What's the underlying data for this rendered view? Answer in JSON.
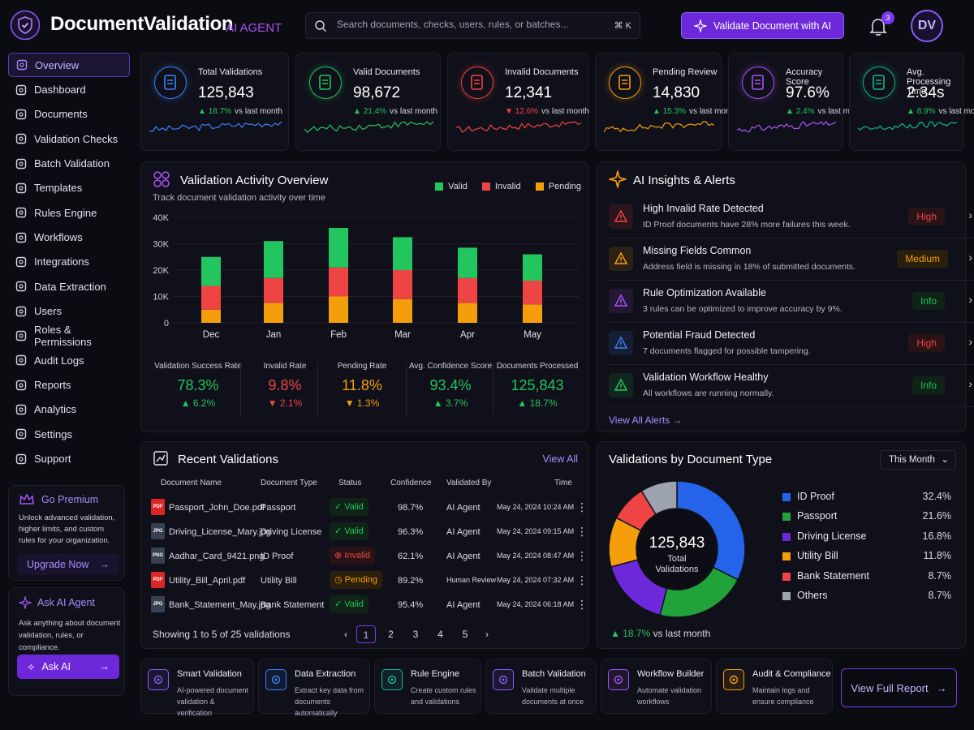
{
  "header": {
    "brand": "DocumentValidation",
    "tag": "AI AGENT",
    "search_placeholder": "Search documents, checks, users, rules, or batches...",
    "search_shortcut": "⌘ K",
    "validate_button": "Validate Document with AI",
    "notification_count": "3",
    "avatar_initials": "DV"
  },
  "sidebar": {
    "items": [
      {
        "label": "Overview",
        "icon": "home-icon",
        "active": true
      },
      {
        "label": "Dashboard",
        "icon": "dashboard-icon"
      },
      {
        "label": "Documents",
        "icon": "documents-icon"
      },
      {
        "label": "Validation Checks",
        "icon": "checklist-icon"
      },
      {
        "label": "Batch Validation",
        "icon": "batch-icon"
      },
      {
        "label": "Templates",
        "icon": "template-icon"
      },
      {
        "label": "Rules Engine",
        "icon": "gear-icon"
      },
      {
        "label": "Workflows",
        "icon": "workflow-icon"
      },
      {
        "label": "Integrations",
        "icon": "integrations-icon"
      },
      {
        "label": "Data Extraction",
        "icon": "extraction-icon"
      },
      {
        "label": "Users",
        "icon": "users-icon"
      },
      {
        "label": "Roles & Permissions",
        "icon": "shield-icon"
      },
      {
        "label": "Audit Logs",
        "icon": "audit-icon"
      },
      {
        "label": "Reports",
        "icon": "report-icon"
      },
      {
        "label": "Analytics",
        "icon": "analytics-icon"
      },
      {
        "label": "Settings",
        "icon": "settings-icon"
      },
      {
        "label": "Support",
        "icon": "help-icon"
      }
    ],
    "premium": {
      "title": "Go Premium",
      "desc": "Unlock advanced validation, higher limits, and custom rules for your organization.",
      "button": "Upgrade Now"
    },
    "ask": {
      "title": "Ask AI Agent",
      "desc": "Ask anything about document validation, rules, or compliance.",
      "button": "Ask AI"
    }
  },
  "stats": [
    {
      "title": "Total Validations",
      "value": "125,843",
      "delta": "18.7%",
      "delta_label": "vs last month",
      "trend": "up",
      "color": "#3b82f6",
      "icon": "document-icon"
    },
    {
      "title": "Valid Documents",
      "value": "98,672",
      "delta": "21.4%",
      "delta_label": "vs last month",
      "trend": "up",
      "color": "#22c55e",
      "icon": "check-circle-icon"
    },
    {
      "title": "Invalid Documents",
      "value": "12,341",
      "delta": "12.6%",
      "delta_label": "vs last month",
      "trend": "down",
      "color": "#ef4444",
      "icon": "x-circle-icon"
    },
    {
      "title": "Pending Review",
      "value": "14,830",
      "delta": "15.3%",
      "delta_label": "vs last month",
      "trend": "up",
      "color": "#f59e0b",
      "icon": "clock-icon"
    },
    {
      "title": "Accuracy Score",
      "value": "97.6%",
      "delta": "2.4%",
      "delta_label": "vs last month",
      "trend": "up",
      "color": "#a855f7",
      "icon": "target-icon"
    },
    {
      "title": "Avg. Processing Time",
      "value": "2.34s",
      "delta": "8.9%",
      "delta_label": "vs last month",
      "trend": "up",
      "color": "#10b981",
      "icon": "stopwatch-icon"
    }
  ],
  "activity": {
    "title": "Validation Activity Overview",
    "subtitle": "Track document validation activity over time",
    "metrics": [
      {
        "label": "Validation Success Rate",
        "value": "78.3%",
        "delta": "6.2%",
        "trend": "up",
        "color": "#22c55e"
      },
      {
        "label": "Invalid Rate",
        "value": "9.8%",
        "delta": "2.1%",
        "trend": "down",
        "color": "#ef4444"
      },
      {
        "label": "Pending Rate",
        "value": "11.8%",
        "delta": "1.3%",
        "trend": "down",
        "color": "#f59e0b"
      },
      {
        "label": "Avg. Confidence Score",
        "value": "93.4%",
        "delta": "3.7%",
        "trend": "up",
        "color": "#22c55e"
      },
      {
        "label": "Documents Processed",
        "value": "125,843",
        "delta": "18.7%",
        "trend": "up",
        "color": "#22c55e"
      }
    ]
  },
  "chart_data": {
    "type": "bar",
    "stacked": true,
    "categories": [
      "Dec",
      "Jan",
      "Feb",
      "Mar",
      "Apr",
      "May"
    ],
    "series": [
      {
        "name": "Pending",
        "color": "#f59e0b",
        "values": [
          5000,
          7500,
          10000,
          9000,
          7500,
          7000
        ]
      },
      {
        "name": "Invalid",
        "color": "#ef4444",
        "values": [
          9000,
          9500,
          11000,
          11000,
          9500,
          9000
        ]
      },
      {
        "name": "Valid",
        "color": "#22c55e",
        "values": [
          11000,
          14000,
          15000,
          12500,
          11500,
          10000
        ]
      }
    ],
    "yticks": [
      "0",
      "10K",
      "20K",
      "30K",
      "40K"
    ],
    "ylim": [
      0,
      40000
    ],
    "legend": [
      "Valid",
      "Invalid",
      "Pending"
    ],
    "legend_position": "top-right"
  },
  "insights": {
    "title": "AI Insights & Alerts",
    "view_all": "View All Alerts",
    "alerts": [
      {
        "title": "High Invalid Rate Detected",
        "desc": "ID Proof documents have 28% more failures this week.",
        "level": "High",
        "icon": "warning-icon",
        "color": "#ef4444"
      },
      {
        "title": "Missing Fields Common",
        "desc": "Address field is missing in 18% of submitted documents.",
        "level": "Medium",
        "icon": "document-icon",
        "color": "#f59e0b"
      },
      {
        "title": "Rule Optimization Available",
        "desc": "3 rules can be optimized to improve accuracy by 9%.",
        "level": "Info",
        "icon": "robot-icon",
        "color": "#a855f7"
      },
      {
        "title": "Potential Fraud Detected",
        "desc": "7 documents flagged for possible tampering.",
        "level": "High",
        "icon": "shield-icon",
        "color": "#3b82f6"
      },
      {
        "title": "Validation Workflow Healthy",
        "desc": "All workflows are running normally.",
        "level": "Info",
        "icon": "check-circle-icon",
        "color": "#22c55e"
      }
    ]
  },
  "recent": {
    "title": "Recent Validations",
    "view_all": "View All",
    "columns": [
      "Document Name",
      "Document Type",
      "Status",
      "Confidence",
      "Validated By",
      "Time"
    ],
    "rows": [
      {
        "name": "Passport_John_Doe.pdf",
        "ext": "PDF",
        "type": "Passport",
        "status": "Valid",
        "confidence": "98.7%",
        "by": "AI Agent",
        "time": "May 24, 2024 10:24 AM"
      },
      {
        "name": "Driving_License_Mary.jpg",
        "ext": "JPG",
        "type": "Driving License",
        "status": "Valid",
        "confidence": "96.3%",
        "by": "AI Agent",
        "time": "May 24, 2024 09:15 AM"
      },
      {
        "name": "Aadhar_Card_9421.png",
        "ext": "PNG",
        "type": "ID Proof",
        "status": "Invalid",
        "confidence": "62.1%",
        "by": "AI Agent",
        "time": "May 24, 2024 08:47 AM"
      },
      {
        "name": "Utility_Bill_April.pdf",
        "ext": "PDF",
        "type": "Utility Bill",
        "status": "Pending",
        "confidence": "89.2%",
        "by": "Human Review",
        "time": "May 24, 2024 07:32 AM"
      },
      {
        "name": "Bank_Statement_May.jpg",
        "ext": "JPG",
        "type": "Bank Statement",
        "status": "Valid",
        "confidence": "95.4%",
        "by": "AI Agent",
        "time": "May 24, 2024 06:18 AM"
      }
    ],
    "footer": "Showing 1 to 5 of 25 validations",
    "pages": [
      "1",
      "2",
      "3",
      "4",
      "5"
    ]
  },
  "doctype": {
    "title": "Validations by Document Type",
    "period": "This Month",
    "center_value": "125,843",
    "center_label1": "Total",
    "center_label2": "Validations",
    "delta": "18.7%",
    "delta_label": "vs last month",
    "slices": [
      {
        "name": "ID Proof",
        "pct": "32.4%",
        "value": 32.4,
        "color": "#2563eb"
      },
      {
        "name": "Passport",
        "pct": "21.6%",
        "value": 21.6,
        "color": "#22a33a"
      },
      {
        "name": "Driving License",
        "pct": "16.8%",
        "value": 16.8,
        "color": "#6d28d9"
      },
      {
        "name": "Utility Bill",
        "pct": "11.8%",
        "value": 11.8,
        "color": "#f59e0b"
      },
      {
        "name": "Bank Statement",
        "pct": "8.7%",
        "value": 8.7,
        "color": "#ef4444"
      },
      {
        "name": "Others",
        "pct": "8.7%",
        "value": 8.7,
        "color": "#9ca3af"
      }
    ]
  },
  "features": [
    {
      "title": "Smart Validation",
      "desc": "AI-powered document validation & verification",
      "color": "#8b5cf6",
      "icon": "target-icon"
    },
    {
      "title": "Data Extraction",
      "desc": "Extract key data from documents automatically",
      "color": "#3b82f6",
      "icon": "extraction-icon"
    },
    {
      "title": "Rule Engine",
      "desc": "Create custom rules and validations",
      "color": "#14b8a6",
      "icon": "gear-icon"
    },
    {
      "title": "Batch Validation",
      "desc": "Validate multiple documents at once",
      "color": "#8b5cf6",
      "icon": "document-icon"
    },
    {
      "title": "Workflow Builder",
      "desc": "Automate validation workflows",
      "color": "#a855f7",
      "icon": "share-icon"
    },
    {
      "title": "Audit & Compliance",
      "desc": "Maintain logs and ensure compliance",
      "color": "#f59e0b",
      "icon": "audit-icon"
    }
  ],
  "full_report": "View Full Report"
}
